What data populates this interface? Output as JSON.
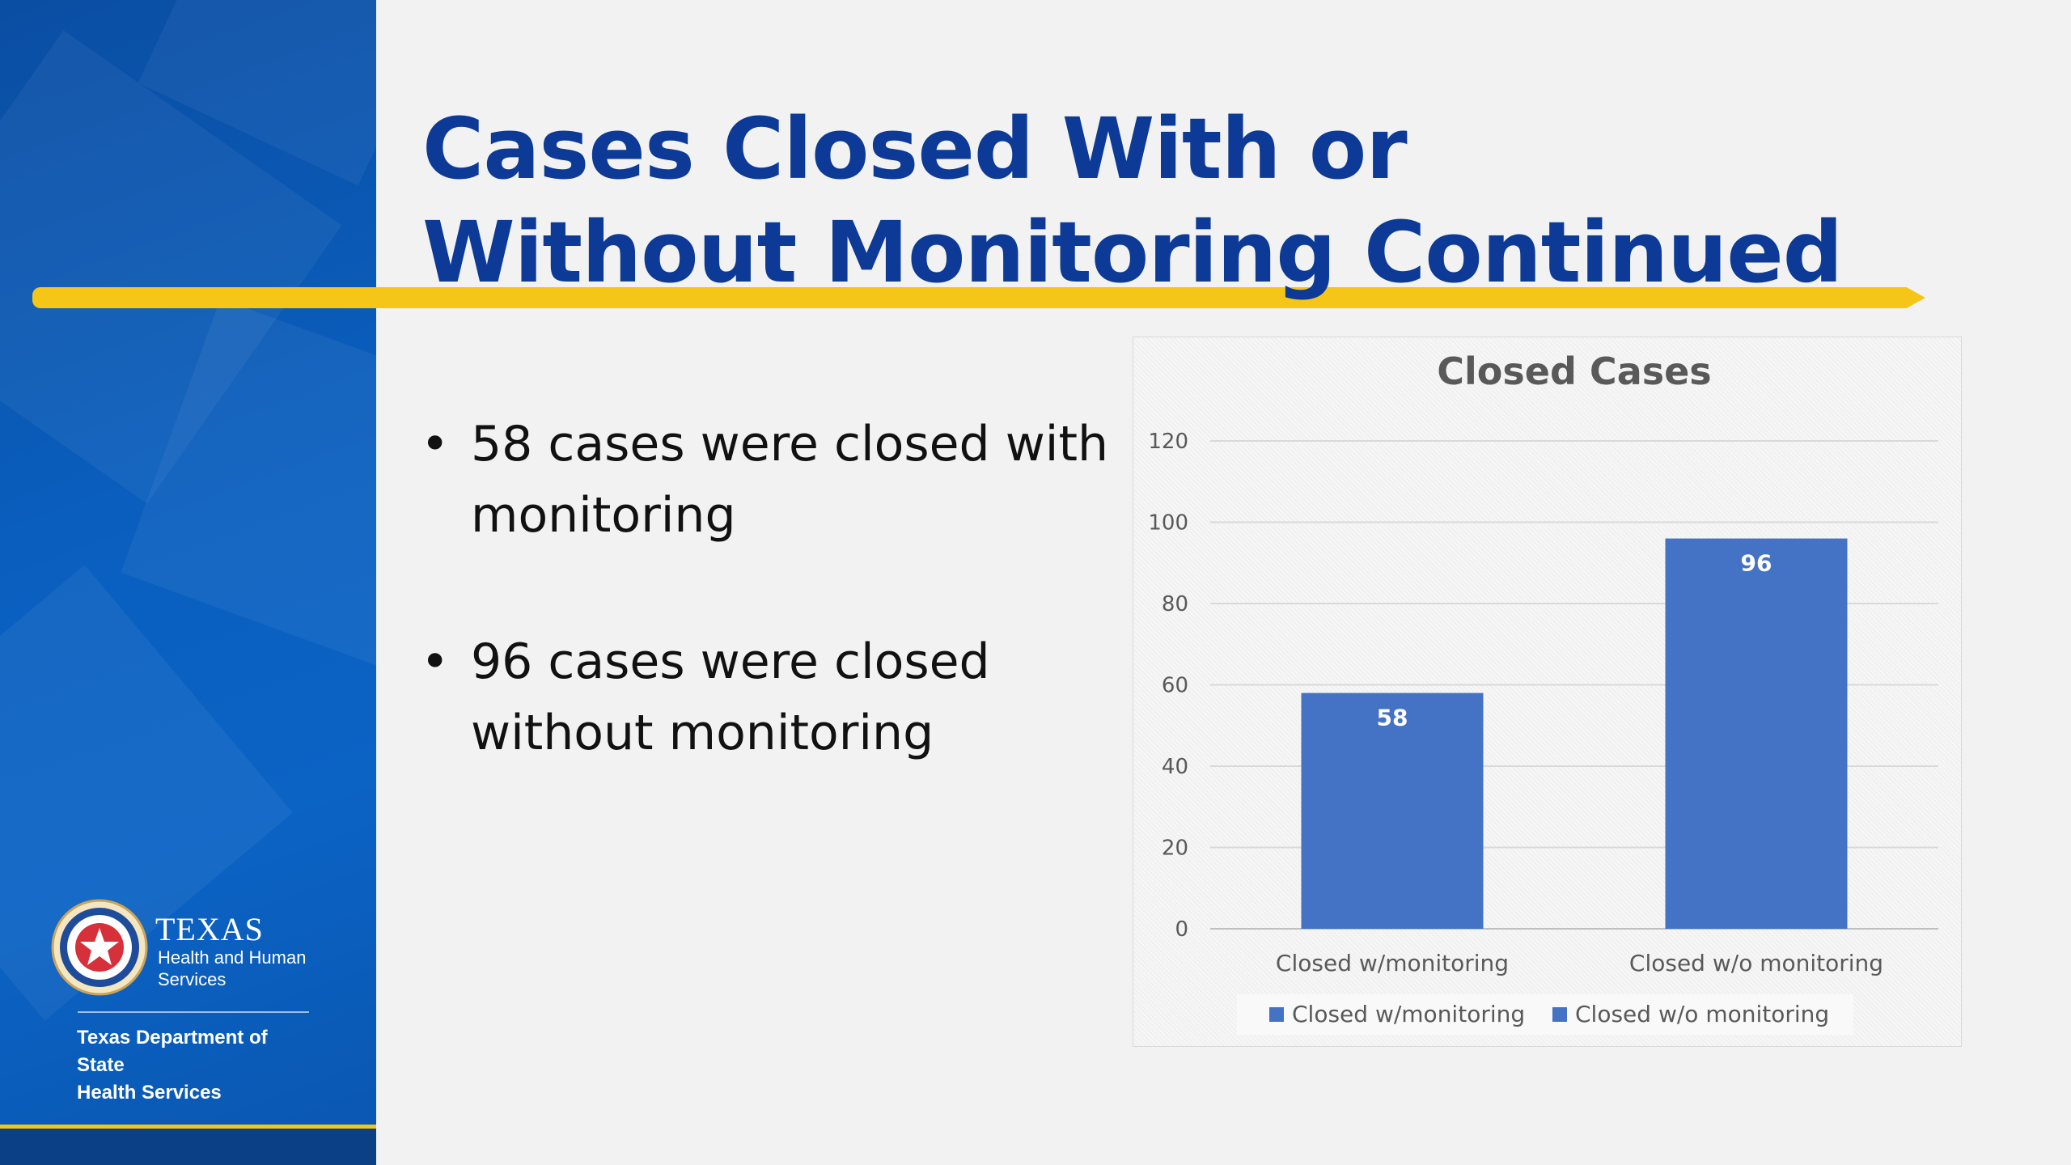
{
  "slide": {
    "title_line1": "Cases Closed With or",
    "title_line2": "Without Monitoring Continued",
    "bullets": [
      "58 cases were closed with monitoring",
      "96 cases were closed without monitoring"
    ]
  },
  "logo": {
    "texas": "TEXAS",
    "hhs_line1": "Health and Human",
    "hhs_line2": "Services",
    "dshs_line1": "Texas Department of State",
    "dshs_line2": "Health Services"
  },
  "colors": {
    "sidebar": "#0a5fbf",
    "title": "#0c3a96",
    "accent_gold": "#f5c518",
    "bar": "#4472c4"
  },
  "chart_data": {
    "type": "bar",
    "title": "Closed Cases",
    "xlabel": "",
    "ylabel": "",
    "categories": [
      "Closed w/monitoring",
      "Closed w/o monitoring"
    ],
    "values": [
      58,
      96
    ],
    "data_labels": [
      "58",
      "96"
    ],
    "ylim": [
      0,
      120
    ],
    "yticks": [
      0,
      20,
      40,
      60,
      80,
      100,
      120
    ],
    "grid": true,
    "legend_position": "bottom",
    "legend": [
      "Closed w/monitoring",
      "Closed w/o monitoring"
    ]
  }
}
